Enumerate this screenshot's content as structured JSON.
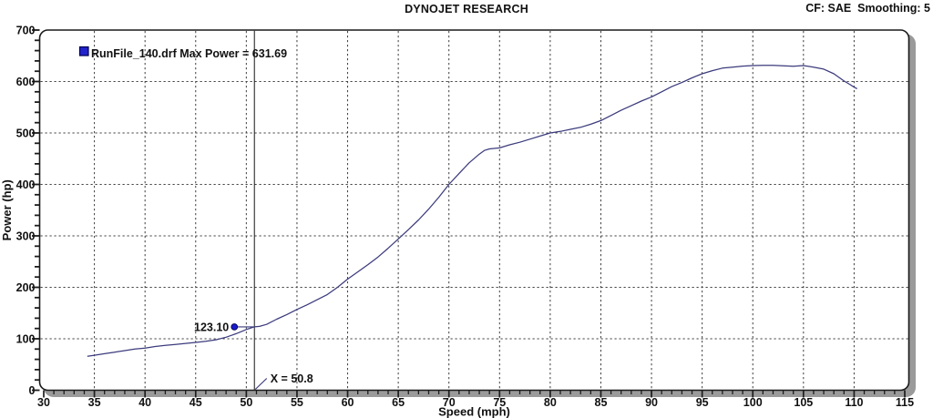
{
  "header": {
    "right_info": "CF: SAE  Smoothing: 5"
  },
  "chart_data": {
    "type": "line",
    "title": "DYNOJET RESEARCH",
    "xlabel": "Speed (mph)",
    "ylabel": "Power (hp)",
    "xlim": [
      30,
      115
    ],
    "ylim": [
      0,
      700
    ],
    "x_major_tick": 5,
    "x_minor_tick": 1,
    "y_major_tick": 100,
    "y_minor_tick": 20,
    "grid": "dashed",
    "legend": {
      "position": "top-left",
      "entries": [
        {
          "label": "RunFile_140.drf Max Power = 631.69",
          "marker_color": "#2323cb"
        }
      ]
    },
    "max_power": 631.69,
    "cursor": {
      "x": 50.8,
      "x_label": "X = 50.8",
      "y": 123.1,
      "y_label": "123.10"
    },
    "series": [
      {
        "name": "RunFile_140.drf",
        "color": "#3b3b7d",
        "points": [
          [
            34.3,
            66
          ],
          [
            35,
            68
          ],
          [
            36,
            71
          ],
          [
            37,
            74
          ],
          [
            38,
            77
          ],
          [
            39,
            80
          ],
          [
            40,
            82
          ],
          [
            41,
            85
          ],
          [
            42,
            87
          ],
          [
            43,
            89
          ],
          [
            44,
            91
          ],
          [
            45,
            93
          ],
          [
            46,
            95
          ],
          [
            47,
            98
          ],
          [
            48,
            103
          ],
          [
            49,
            110
          ],
          [
            50,
            118
          ],
          [
            50.8,
            123.1
          ],
          [
            51.3,
            124
          ],
          [
            52,
            128
          ],
          [
            53,
            138
          ],
          [
            54,
            147
          ],
          [
            55,
            157
          ],
          [
            56,
            166
          ],
          [
            57,
            176
          ],
          [
            58,
            186
          ],
          [
            59,
            200
          ],
          [
            60,
            216
          ],
          [
            61,
            230
          ],
          [
            62,
            244
          ],
          [
            63,
            259
          ],
          [
            64,
            276
          ],
          [
            65,
            294
          ],
          [
            66,
            312
          ],
          [
            67,
            331
          ],
          [
            68,
            352
          ],
          [
            69,
            375
          ],
          [
            70,
            400
          ],
          [
            71,
            421
          ],
          [
            72,
            442
          ],
          [
            73,
            459
          ],
          [
            73.5,
            466
          ],
          [
            74,
            469
          ],
          [
            75,
            471
          ],
          [
            76,
            477
          ],
          [
            77,
            482
          ],
          [
            78,
            488
          ],
          [
            79,
            494
          ],
          [
            80,
            500
          ],
          [
            81,
            503
          ],
          [
            82,
            507
          ],
          [
            83,
            511
          ],
          [
            84,
            517
          ],
          [
            85,
            524
          ],
          [
            86,
            534
          ],
          [
            87,
            544
          ],
          [
            88,
            553
          ],
          [
            89,
            562
          ],
          [
            90,
            570
          ],
          [
            91,
            580
          ],
          [
            92,
            590
          ],
          [
            93,
            598
          ],
          [
            94,
            607
          ],
          [
            95,
            615
          ],
          [
            96,
            621
          ],
          [
            97,
            626
          ],
          [
            98,
            628
          ],
          [
            99,
            630
          ],
          [
            100,
            631
          ],
          [
            101,
            631.5
          ],
          [
            102,
            631.5
          ],
          [
            103,
            630.5
          ],
          [
            104,
            629.5
          ],
          [
            105,
            631
          ],
          [
            106,
            628
          ],
          [
            107,
            624
          ],
          [
            108,
            615
          ],
          [
            109,
            601
          ],
          [
            109.6,
            594
          ],
          [
            110,
            589
          ],
          [
            110.3,
            586
          ]
        ]
      }
    ]
  },
  "colors": {
    "curve": "#3b3b7d",
    "marker_blue": "#1b1bcd",
    "marker_edge": "#000050",
    "grid": "#404040",
    "frame": "#1a1a1a",
    "shadow": "#9a9a9a",
    "cursor": "#2b2b2b",
    "text": "#111111"
  }
}
